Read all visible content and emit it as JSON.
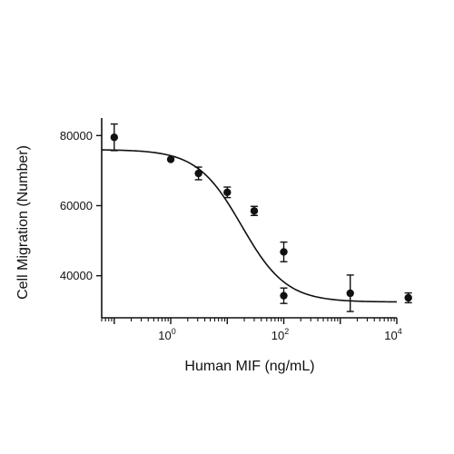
{
  "chart_data": {
    "type": "scatter",
    "title": "",
    "xlabel": "Human MIF (ng/mL)",
    "ylabel": "Cell Migration (Number)",
    "x_scale": "log10",
    "xlim": [
      0.06,
      10000
    ],
    "ylim": [
      28000,
      85000
    ],
    "x_ticks": [
      {
        "value": 1,
        "base": "10",
        "exp": "0"
      },
      {
        "value": 100,
        "base": "10",
        "exp": "2"
      },
      {
        "value": 10000,
        "base": "10",
        "exp": "4"
      }
    ],
    "y_ticks": [
      {
        "value": 40000,
        "label": "40000"
      },
      {
        "value": 60000,
        "label": "60000"
      },
      {
        "value": 80000,
        "label": "80000"
      }
    ],
    "grid": false,
    "legend": "none",
    "colors": {
      "points": "#111111",
      "curve": "#111111",
      "axes": "#111111"
    },
    "series": [
      {
        "points": [
          {
            "x": 0.1,
            "y": 79500,
            "err": 3800
          },
          {
            "x": 1,
            "y": 73200,
            "err": 0
          },
          {
            "x": 3.1,
            "y": 69200,
            "err": 1800
          },
          {
            "x": 10,
            "y": 63800,
            "err": 1500
          },
          {
            "x": 30,
            "y": 58500,
            "err": 1300
          },
          {
            "x": 100,
            "y": 46800,
            "err": 2800
          },
          {
            "x": 100,
            "y": 34300,
            "err": 2200
          },
          {
            "x": 1500,
            "y": 35000,
            "err": 5200
          },
          {
            "x": 16000,
            "y": 33700,
            "err": 1400
          }
        ],
        "fit": {
          "model": "4PL",
          "top": 76000,
          "bottom": 32500,
          "ec50": 18,
          "hill": 1.1
        }
      }
    ]
  }
}
